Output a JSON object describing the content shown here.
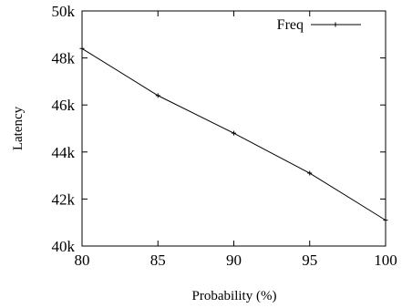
{
  "chart_data": {
    "type": "line",
    "title": "",
    "xlabel": "Probability (%)",
    "ylabel": "Latency",
    "xlim": [
      80,
      100
    ],
    "ylim": [
      40000,
      50000
    ],
    "x_ticks": [
      80,
      85,
      90,
      95,
      100
    ],
    "x_tick_labels": [
      "80",
      "85",
      "90",
      "95",
      "100"
    ],
    "y_ticks": [
      40000,
      42000,
      44000,
      46000,
      48000,
      50000
    ],
    "y_tick_labels": [
      "40k",
      "42k",
      "44k",
      "46k",
      "48k",
      "50k"
    ],
    "grid": false,
    "legend_position": "top-right",
    "series": [
      {
        "name": "Freq",
        "color": "#000000",
        "marker": "plus",
        "x": [
          80,
          85,
          90,
          95,
          100
        ],
        "y": [
          48400,
          46400,
          44800,
          43100,
          41100
        ]
      }
    ]
  }
}
